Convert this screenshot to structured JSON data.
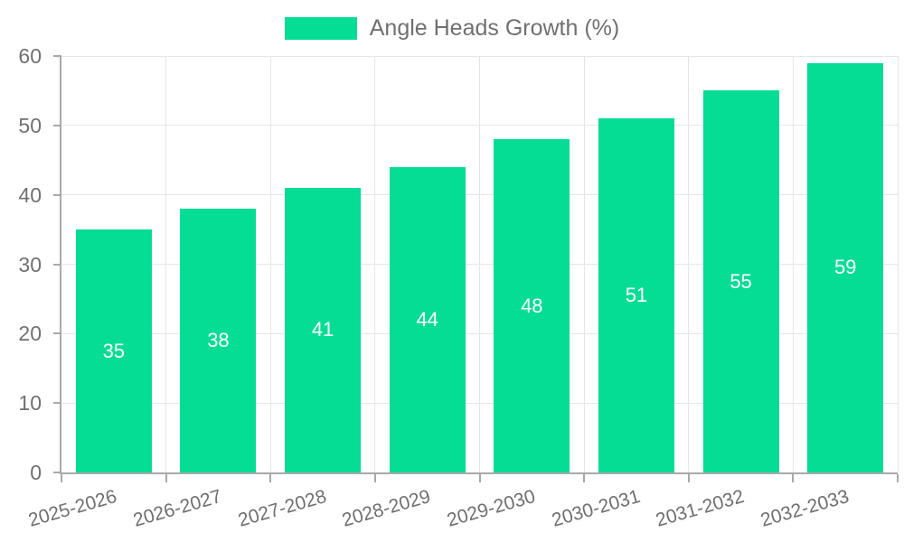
{
  "chart": {
    "legend_label": "Angle Heads Growth (%)"
  },
  "chart_data": {
    "type": "bar",
    "title": "Angle Heads Growth (%)",
    "categories": [
      "2025-2026",
      "2026-2027",
      "2027-2028",
      "2028-2029",
      "2029-2030",
      "2030-2031",
      "2031-2032",
      "2032-2033"
    ],
    "values": [
      35,
      38,
      41,
      44,
      48,
      51,
      55,
      59
    ],
    "xlabel": "",
    "ylabel": "",
    "ylim": [
      0,
      60
    ],
    "yticks": [
      0,
      10,
      20,
      30,
      40,
      50,
      60
    ],
    "grid": true,
    "legend_position": "top-center",
    "value_labels_inside_bars": true,
    "x_tick_rotation_deg": -16
  },
  "colors": {
    "bar": "#05DC94",
    "grid": "#E6E6E6",
    "axis": "#A9A9A9",
    "text": "#707070",
    "value_label": "#FFFFFF",
    "background": "#FFFFFF"
  }
}
